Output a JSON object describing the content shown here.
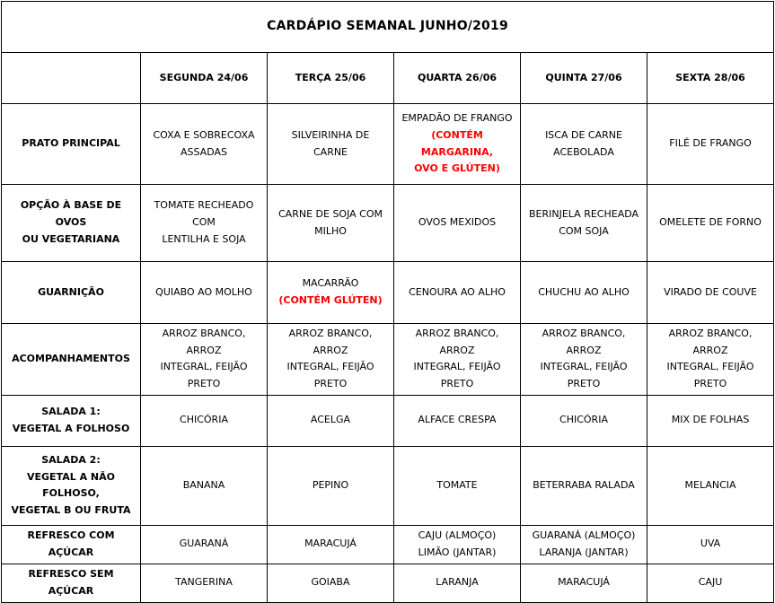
{
  "title": "CARDÁPIO SEMANAL JUNHO/2019",
  "colors": {
    "text": "#000000",
    "alert": "#FF0000",
    "border": "#000000",
    "background": "#FFFFFF"
  },
  "days": [
    "SEGUNDA 24/06",
    "TERÇA 25/06",
    "QUARTA 26/06",
    "QUINTA 27/06",
    "SEXTA 28/06"
  ],
  "rows": [
    {
      "label": "PRATO PRINCIPAL",
      "cells": [
        {
          "t": "COXA E SOBRECOXA\nASSADAS"
        },
        {
          "t": "SILVEIRINHA DE CARNE"
        },
        {
          "t": "EMPADÃO DE FRANGO",
          "w": "(CONTÉM MARGARINA,\nOVO E GLÚTEN)"
        },
        {
          "t": "ISCA DE CARNE\nACEBOLADA"
        },
        {
          "t": "FILÉ DE FRANGO"
        }
      ]
    },
    {
      "label": "OPÇÃO À BASE DE OVOS\nOU VEGETARIANA",
      "cells": [
        {
          "t": "TOMATE RECHEADO COM\nLENTILHA E SOJA"
        },
        {
          "t": "CARNE DE SOJA COM\nMILHO"
        },
        {
          "t": "OVOS MEXIDOS"
        },
        {
          "t": "BERINJELA RECHEADA\nCOM SOJA"
        },
        {
          "t": "OMELETE DE FORNO"
        }
      ]
    },
    {
      "label": "GUARNIÇÃO",
      "cells": [
        {
          "t": "QUIABO AO MOLHO"
        },
        {
          "t": "MACARRÃO",
          "w": "(CONTÉM GLÚTEN)"
        },
        {
          "t": "CENOURA AO ALHO"
        },
        {
          "t": "CHUCHU AO ALHO"
        },
        {
          "t": "VIRADO DE COUVE"
        }
      ]
    },
    {
      "label": "ACOMPANHAMENTOS",
      "cells": [
        {
          "t": "ARROZ BRANCO, ARROZ\nINTEGRAL, FEIJÃO PRETO"
        },
        {
          "t": "ARROZ BRANCO, ARROZ\nINTEGRAL, FEIJÃO PRETO"
        },
        {
          "t": "ARROZ BRANCO, ARROZ\nINTEGRAL, FEIJÃO PRETO"
        },
        {
          "t": "ARROZ BRANCO, ARROZ\nINTEGRAL, FEIJÃO PRETO"
        },
        {
          "t": "ARROZ BRANCO, ARROZ\nINTEGRAL, FEIJÃO PRETO"
        }
      ]
    },
    {
      "label": "SALADA 1:\nVEGETAL A FOLHOSO",
      "cells": [
        {
          "t": "CHICÓRIA"
        },
        {
          "t": "ACELGA"
        },
        {
          "t": "ALFACE CRESPA"
        },
        {
          "t": "CHICÓRIA"
        },
        {
          "t": "MIX DE FOLHAS"
        }
      ]
    },
    {
      "label": "SALADA 2:\nVEGETAL A NÃO FOLHOSO,\nVEGETAL B OU FRUTA",
      "cells": [
        {
          "t": "BANANA"
        },
        {
          "t": "PEPINO"
        },
        {
          "t": "TOMATE"
        },
        {
          "t": "BETERRABA RALADA"
        },
        {
          "t": "MELANCIA"
        }
      ]
    },
    {
      "label": "REFRESCO COM AÇÚCAR",
      "cells": [
        {
          "t": "GUARANÁ"
        },
        {
          "t": "MARACUJÁ"
        },
        {
          "t": "CAJU (ALMOÇO)\nLIMÃO (JANTAR)"
        },
        {
          "t": "GUARANÁ (ALMOÇO)\nLARANJA (JANTAR)"
        },
        {
          "t": "UVA"
        }
      ]
    },
    {
      "label": "REFRESCO SEM AÇÚCAR",
      "cells": [
        {
          "t": "TANGERINA"
        },
        {
          "t": "GOIABA"
        },
        {
          "t": "LARANJA"
        },
        {
          "t": "MARACUJÁ"
        },
        {
          "t": "CAJU"
        }
      ]
    }
  ]
}
